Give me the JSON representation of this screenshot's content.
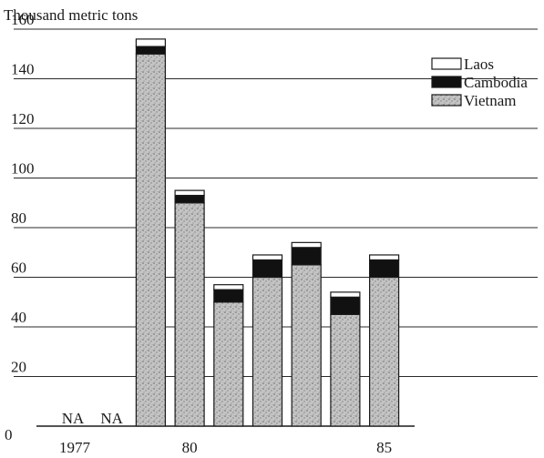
{
  "chart_data": {
    "type": "bar",
    "stacked": true,
    "unit_label": "Thousand metric tons",
    "ylim": [
      0,
      160
    ],
    "yticks": [
      "0",
      "20",
      "40",
      "60",
      "80",
      "100",
      "120",
      "140",
      "160"
    ],
    "categories": [
      "1977",
      "1978",
      "1979",
      "1980",
      "1981",
      "1982",
      "1983",
      "1984",
      "1985"
    ],
    "x_tick_labels": [
      "1977",
      "",
      "",
      "80",
      "",
      "",
      "",
      "",
      "85"
    ],
    "na_labels": [
      "NA",
      "NA",
      "",
      "",
      "",
      "",
      "",
      "",
      ""
    ],
    "series": [
      {
        "name": "Vietnam",
        "values": [
          null,
          null,
          150,
          90,
          50,
          60,
          65,
          45,
          60
        ]
      },
      {
        "name": "Cambodia",
        "values": [
          null,
          null,
          3,
          3,
          5,
          7,
          7,
          7,
          7
        ]
      },
      {
        "name": "Laos",
        "values": [
          null,
          null,
          3,
          2,
          2,
          2,
          2,
          2,
          2
        ]
      }
    ],
    "legend": [
      "Laos",
      "Cambodia",
      "Vietnam"
    ],
    "legend_position": "top-right",
    "grid": true,
    "colors": {
      "Vietnam": "#bdbdbd",
      "Cambodia": "#111111",
      "Laos": "#ffffff"
    }
  }
}
